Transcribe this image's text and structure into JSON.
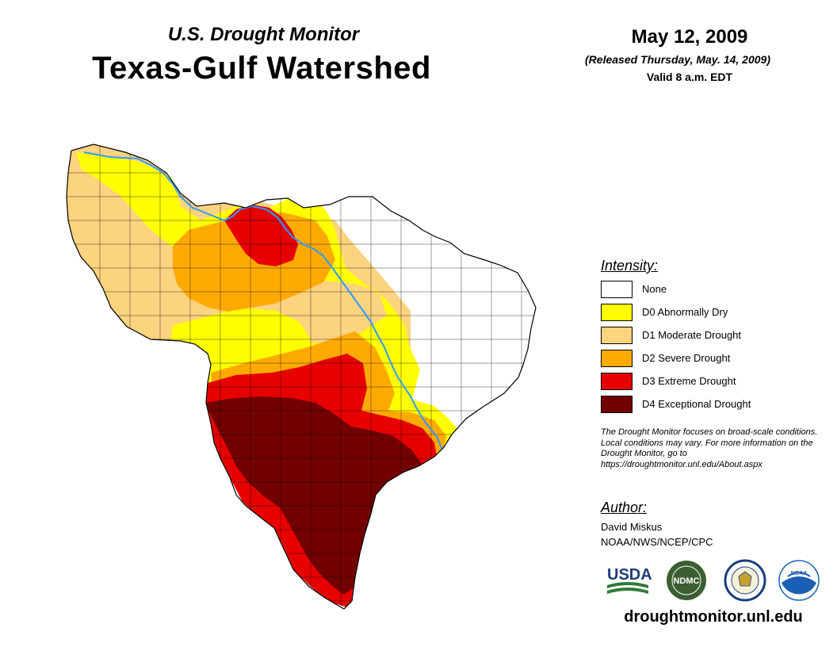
{
  "header": {
    "subtitle": "U.S. Drought Monitor",
    "title": "Texas-Gulf Watershed",
    "date": "May 12, 2009",
    "released": "(Released Thursday, May. 14, 2009)",
    "valid": "Valid 8 a.m. EDT"
  },
  "legend": {
    "heading": "Intensity:",
    "items": [
      {
        "label": "None",
        "color": "#ffffff"
      },
      {
        "label": "D0 Abnormally Dry",
        "color": "#ffff00"
      },
      {
        "label": "D1 Moderate Drought",
        "color": "#fcd37f"
      },
      {
        "label": "D2 Severe Drought",
        "color": "#ffaa00"
      },
      {
        "label": "D3 Extreme Drought",
        "color": "#e60000"
      },
      {
        "label": "D4 Exceptional Drought",
        "color": "#730000"
      }
    ]
  },
  "note": "The Drought Monitor focuses on broad-scale conditions. Local conditions may vary. For more information on the Drought Monitor, go to https://droughtmonitor.unl.edu/About.aspx",
  "author": {
    "heading": "Author:",
    "name": "David Miskus",
    "org": "NOAA/NWS/NCEP/CPC"
  },
  "logos": {
    "usda": "USDA",
    "ndmc": "NDMC",
    "noaa": "NOAA"
  },
  "website": "droughtmonitor.unl.edu",
  "colors": {
    "river": "#3399ff",
    "county_lines": "#000000",
    "usda_blue": "#1f3d7a",
    "usda_green": "#2f7a3a",
    "ndmc_green": "#3b5e32",
    "noaa_blue": "#1a5fb4"
  }
}
